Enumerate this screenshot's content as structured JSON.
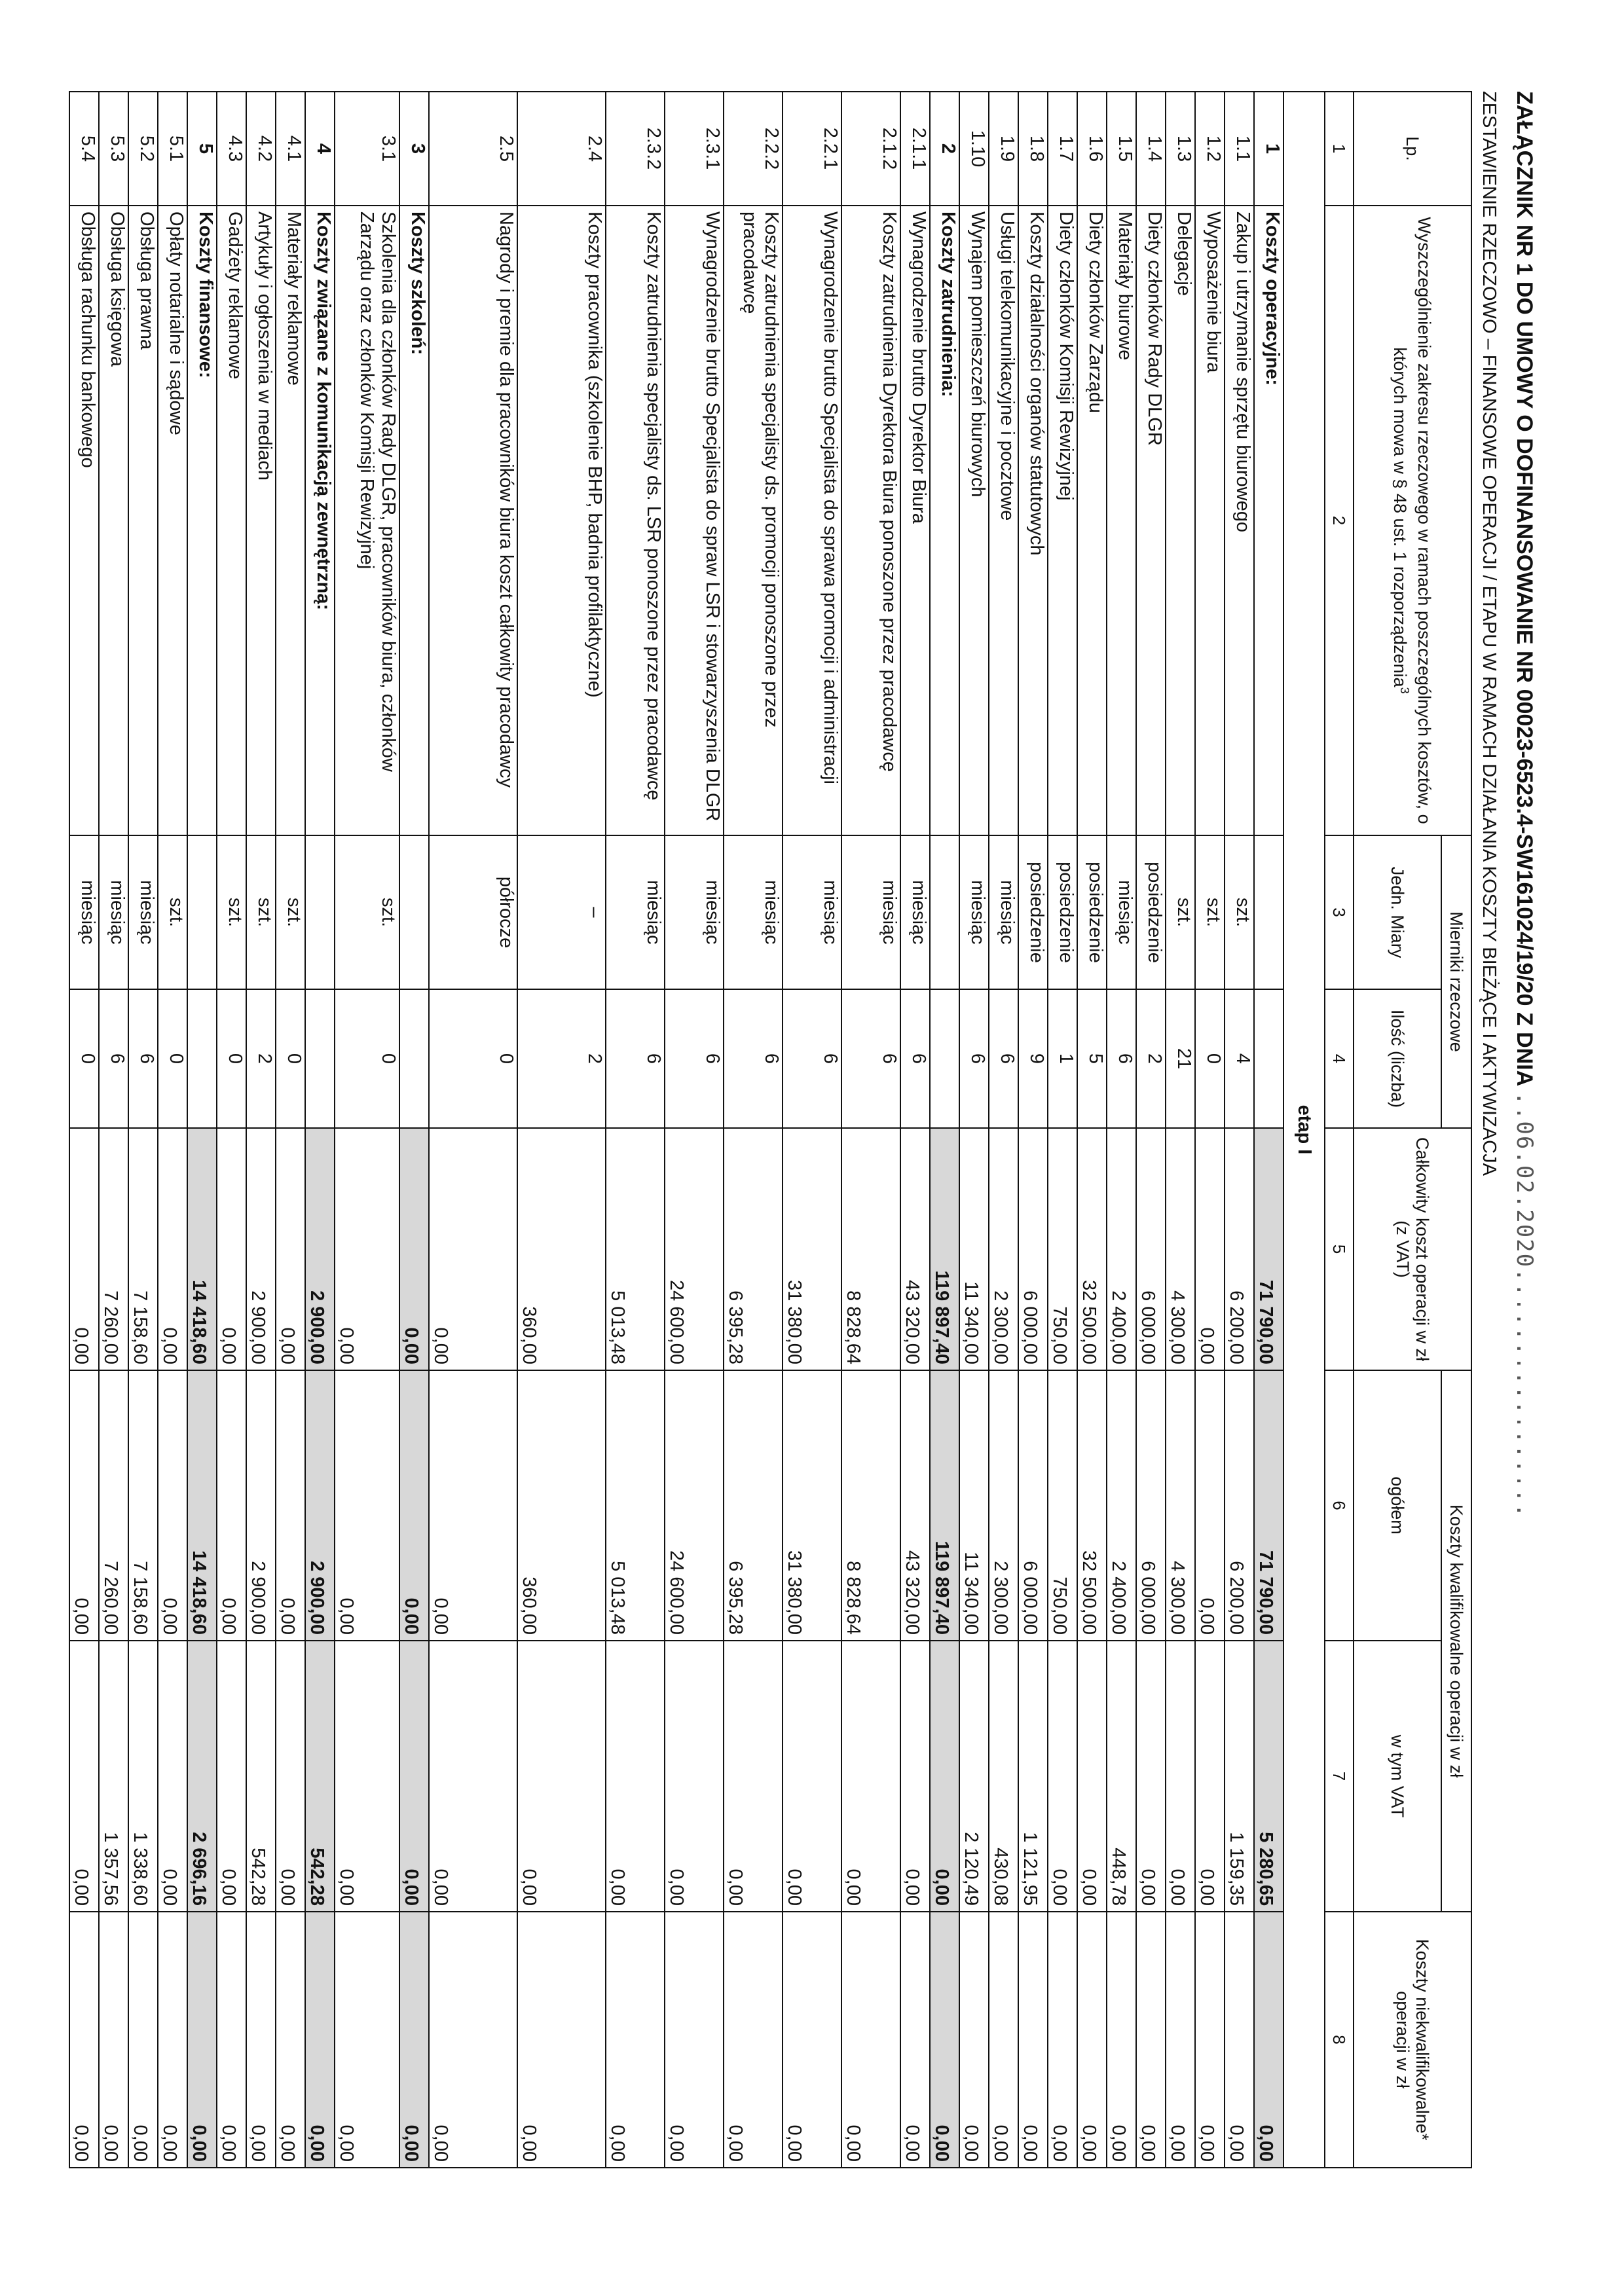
{
  "title": "ZAŁĄCZNIK NR 1 DO UMOWY O DOFINANSOWANIE NR 00023-6523.4-SW161024/19/20 Z DNIA",
  "date": "..06.02.2020.................",
  "subtitle": "ZESTAWIENIE RZECZOWO – FINANSOWE OPERACJI / ETAPU W RAMACH DZIAŁANIA KOSZTY BIEŻĄCE I AKTYWIZACJA",
  "headers": {
    "lp": "Lp.",
    "desc": "Wyszczególnienie zakresu rzeczowego w ramach poszczególnych kosztów, o których mowa w § 48 ust. 1 rozporządzenia",
    "desc_sup": "3",
    "mierniki": "Mierniki rzeczowe",
    "unit": "Jedn. Miary",
    "qty": "Ilość (liczba)",
    "total": "Całkowity koszt operacji w zł (z VAT)",
    "eligible_group": "Koszty kwalifikowalne operacji w zł",
    "eligible": "ogółem",
    "vat": "w tym VAT",
    "ineligible": "Koszty niekwalifikowalne* operacji w zł",
    "numbers": [
      "1",
      "2",
      "3",
      "4",
      "5",
      "6",
      "7",
      "8"
    ]
  },
  "stage": "etap I",
  "rows": [
    {
      "lp": "1",
      "desc": "Koszty operacyjne:",
      "unit": "",
      "qty": "",
      "total": "71 790,00",
      "eligible": "71 790,00",
      "vat": "5 280,65",
      "ineligible": "0,00",
      "cat": true,
      "h": 1
    },
    {
      "lp": "1.1",
      "desc": "Zakup i utrzymanie sprzętu biurowego",
      "unit": "szt.",
      "qty": "4",
      "total": "6 200,00",
      "eligible": "6 200,00",
      "vat": "1 159,35",
      "ineligible": "0,00",
      "h": 1
    },
    {
      "lp": "1.2",
      "desc": "Wyposażenie biura",
      "unit": "szt.",
      "qty": "0",
      "total": "0,00",
      "eligible": "0,00",
      "vat": "0,00",
      "ineligible": "0,00",
      "h": 1
    },
    {
      "lp": "1.3",
      "desc": "Delegacje",
      "unit": "szt.",
      "qty": "21",
      "total": "4 300,00",
      "eligible": "4 300,00",
      "vat": "0,00",
      "ineligible": "0,00",
      "h": 1
    },
    {
      "lp": "1.4",
      "desc": "Diety członków Rady DLGR",
      "unit": "posiedzenie",
      "qty": "2",
      "total": "6 000,00",
      "eligible": "6 000,00",
      "vat": "0,00",
      "ineligible": "0,00",
      "h": 1
    },
    {
      "lp": "1.5",
      "desc": "Materiały biurowe",
      "unit": "miesiąc",
      "qty": "6",
      "total": "2 400,00",
      "eligible": "2 400,00",
      "vat": "448,78",
      "ineligible": "0,00",
      "h": 1
    },
    {
      "lp": "1.6",
      "desc": "Diety członków Zarządu",
      "unit": "posiedzenie",
      "qty": "5",
      "total": "32 500,00",
      "eligible": "32 500,00",
      "vat": "0,00",
      "ineligible": "0,00",
      "h": 1
    },
    {
      "lp": "1.7",
      "desc": "Diety członków Komisji Rewizyjnej",
      "unit": "posiedzenie",
      "qty": "1",
      "total": "750,00",
      "eligible": "750,00",
      "vat": "0,00",
      "ineligible": "0,00",
      "h": 1
    },
    {
      "lp": "1.8",
      "desc": "Koszty działalności organów statutowych",
      "unit": "posiedzenie",
      "qty": "9",
      "total": "6 000,00",
      "eligible": "6 000,00",
      "vat": "1 121,95",
      "ineligible": "0,00",
      "h": 1
    },
    {
      "lp": "1.9",
      "desc": "Usługi telekomunikacyjne i pocztowe",
      "unit": "miesiąc",
      "qty": "6",
      "total": "2 300,00",
      "eligible": "2 300,00",
      "vat": "430,08",
      "ineligible": "0,00",
      "h": 1
    },
    {
      "lp": "1.10",
      "desc": "Wynajem pomieszczeń biurowych",
      "unit": "miesiąc",
      "qty": "6",
      "total": "11 340,00",
      "eligible": "11 340,00",
      "vat": "2 120,49",
      "ineligible": "0,00",
      "h": 1
    },
    {
      "lp": "2",
      "desc": "Koszty zatrudnienia:",
      "unit": "",
      "qty": "",
      "total": "119 897,40",
      "eligible": "119 897,40",
      "vat": "0,00",
      "ineligible": "0,00",
      "cat": true,
      "h": 1
    },
    {
      "lp": "2.1.1",
      "desc": "Wynagrodzenie brutto Dyrektor Biura",
      "unit": "miesiąc",
      "qty": "6",
      "total": "43 320,00",
      "eligible": "43 320,00",
      "vat": "0,00",
      "ineligible": "0,00",
      "h": 1
    },
    {
      "lp": "2.1.2",
      "desc": "Koszty zatrudnienia Dyrektora Biura ponoszone przez pracodawcę",
      "unit": "miesiąc",
      "qty": "6",
      "total": "8 828,64",
      "eligible": "8 828,64",
      "vat": "0,00",
      "ineligible": "0,00",
      "h": 2
    },
    {
      "lp": "2.2.1",
      "desc": "Wynagrodzenie brutto Specjalista do sprawa promocji i administracji",
      "unit": "miesiąc",
      "qty": "6",
      "total": "31 380,00",
      "eligible": "31 380,00",
      "vat": "0,00",
      "ineligible": "0,00",
      "h": 2
    },
    {
      "lp": "2.2.2",
      "desc": "Koszty zatrudnienia specjalisty ds. promocji ponoszone przez pracodawcę",
      "unit": "miesiąc",
      "qty": "6",
      "total": "6 395,28",
      "eligible": "6 395,28",
      "vat": "0,00",
      "ineligible": "0,00",
      "h": 2
    },
    {
      "lp": "2.3.1",
      "desc": "Wynagrodzenie brutto Specjalista do spraw LSR i stowarzyszenia DLGR",
      "unit": "miesiąc",
      "qty": "6",
      "total": "24 600,00",
      "eligible": "24 600,00",
      "vat": "0,00",
      "ineligible": "0,00",
      "h": 2
    },
    {
      "lp": "2.3.2",
      "desc": "Koszty zatrudnienia specjalisty ds. LSR ponoszone przez pracodawcę",
      "unit": "miesiąc",
      "qty": "6",
      "total": "5 013,48",
      "eligible": "5 013,48",
      "vat": "0,00",
      "ineligible": "0,00",
      "h": 2
    },
    {
      "lp": "2.4",
      "desc": "Koszty pracownika (szkolenie BHP, badnia profilaktyczne)",
      "unit": "–",
      "qty": "2",
      "total": "360,00",
      "eligible": "360,00",
      "vat": "0,00",
      "ineligible": "0,00",
      "h": 3
    },
    {
      "lp": "2.5",
      "desc": "Nagrody i premie dla pracowników biura koszt całkowity pracodawcy",
      "unit": "półrocze",
      "qty": "0",
      "total": "0,00",
      "eligible": "0,00",
      "vat": "0,00",
      "ineligible": "0,00",
      "h": 3
    },
    {
      "lp": "3",
      "desc": "Koszty szkoleń:",
      "unit": "",
      "qty": "",
      "total": "0,00",
      "eligible": "0,00",
      "vat": "0,00",
      "ineligible": "0,00",
      "cat": true,
      "h": 1
    },
    {
      "lp": "3.1",
      "desc": "Szkolenia dla członków Rady DLGR, pracowników biura, członków Zarządu oraz członków Komisji Rewizyjnej",
      "unit": "szt.",
      "qty": "0",
      "total": "0,00",
      "eligible": "0,00",
      "vat": "0,00",
      "ineligible": "0,00",
      "h": 2.2
    },
    {
      "lp": "4",
      "desc": "Koszty związane z komunikacją zewnętrzną:",
      "unit": "",
      "qty": "",
      "total": "2 900,00",
      "eligible": "2 900,00",
      "vat": "542,28",
      "ineligible": "0,00",
      "cat": true,
      "h": 1
    },
    {
      "lp": "4.1",
      "desc": "Materiały reklamowe",
      "unit": "szt.",
      "qty": "0",
      "total": "0,00",
      "eligible": "0,00",
      "vat": "0,00",
      "ineligible": "0,00",
      "h": 1
    },
    {
      "lp": "4.2",
      "desc": "Artykuły i ogłoszenia w mediach",
      "unit": "szt.",
      "qty": "2",
      "total": "2 900,00",
      "eligible": "2 900,00",
      "vat": "542,28",
      "ineligible": "0,00",
      "h": 1
    },
    {
      "lp": "4.3",
      "desc": "Gadżety reklamowe",
      "unit": "szt.",
      "qty": "0",
      "total": "0,00",
      "eligible": "0,00",
      "vat": "0,00",
      "ineligible": "0,00",
      "h": 1
    },
    {
      "lp": "5",
      "desc": "Koszty finansowe:",
      "unit": "",
      "qty": "",
      "total": "14 418,60",
      "eligible": "14 418,60",
      "vat": "2 696,16",
      "ineligible": "0,00",
      "cat": true,
      "h": 1
    },
    {
      "lp": "5.1",
      "desc": "Opłaty notarialne i sądowe",
      "unit": "szt.",
      "qty": "0",
      "total": "0,00",
      "eligible": "0,00",
      "vat": "0,00",
      "ineligible": "0,00",
      "h": 1
    },
    {
      "lp": "5.2",
      "desc": "Obsługa prawna",
      "unit": "miesiąc",
      "qty": "6",
      "total": "7 158,60",
      "eligible": "7 158,60",
      "vat": "1 338,60",
      "ineligible": "0,00",
      "h": 1
    },
    {
      "lp": "5.3",
      "desc": "Obsługa księgowa",
      "unit": "miesiąc",
      "qty": "6",
      "total": "7 260,00",
      "eligible": "7 260,00",
      "vat": "1 357,56",
      "ineligible": "0,00",
      "h": 1
    },
    {
      "lp": "5.4",
      "desc": "Obsługa rachunku bankowego",
      "unit": "miesiąc",
      "qty": "0",
      "total": "0,00",
      "eligible": "0,00",
      "vat": "0,00",
      "ineligible": "0,00",
      "h": 1
    }
  ]
}
